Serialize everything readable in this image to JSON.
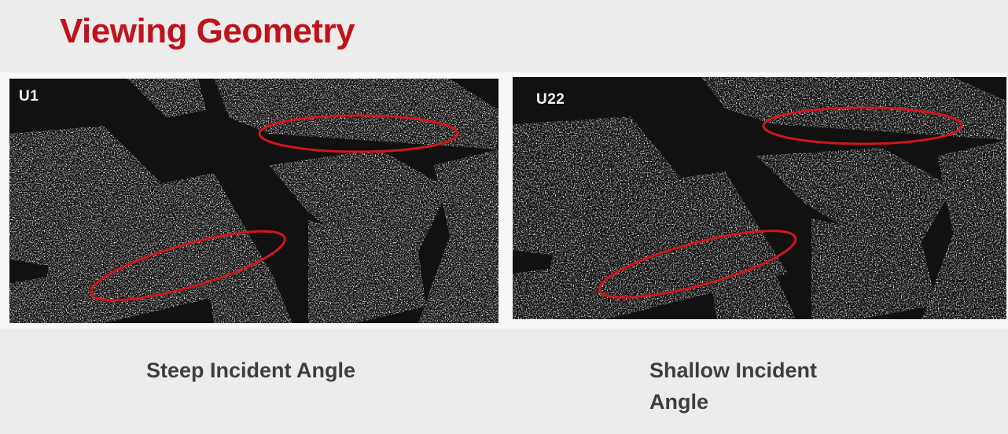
{
  "slide": {
    "title": "Viewing Geometry"
  },
  "panels": [
    {
      "label": "U1",
      "caption": "Steep Incident Angle"
    },
    {
      "label": "U22",
      "caption": "Shallow Incident Angle"
    }
  ],
  "colors": {
    "title": "#c0121c",
    "highlight_ellipse": "#d0151d",
    "caption": "#3e3e3e",
    "background": "#ececec"
  }
}
